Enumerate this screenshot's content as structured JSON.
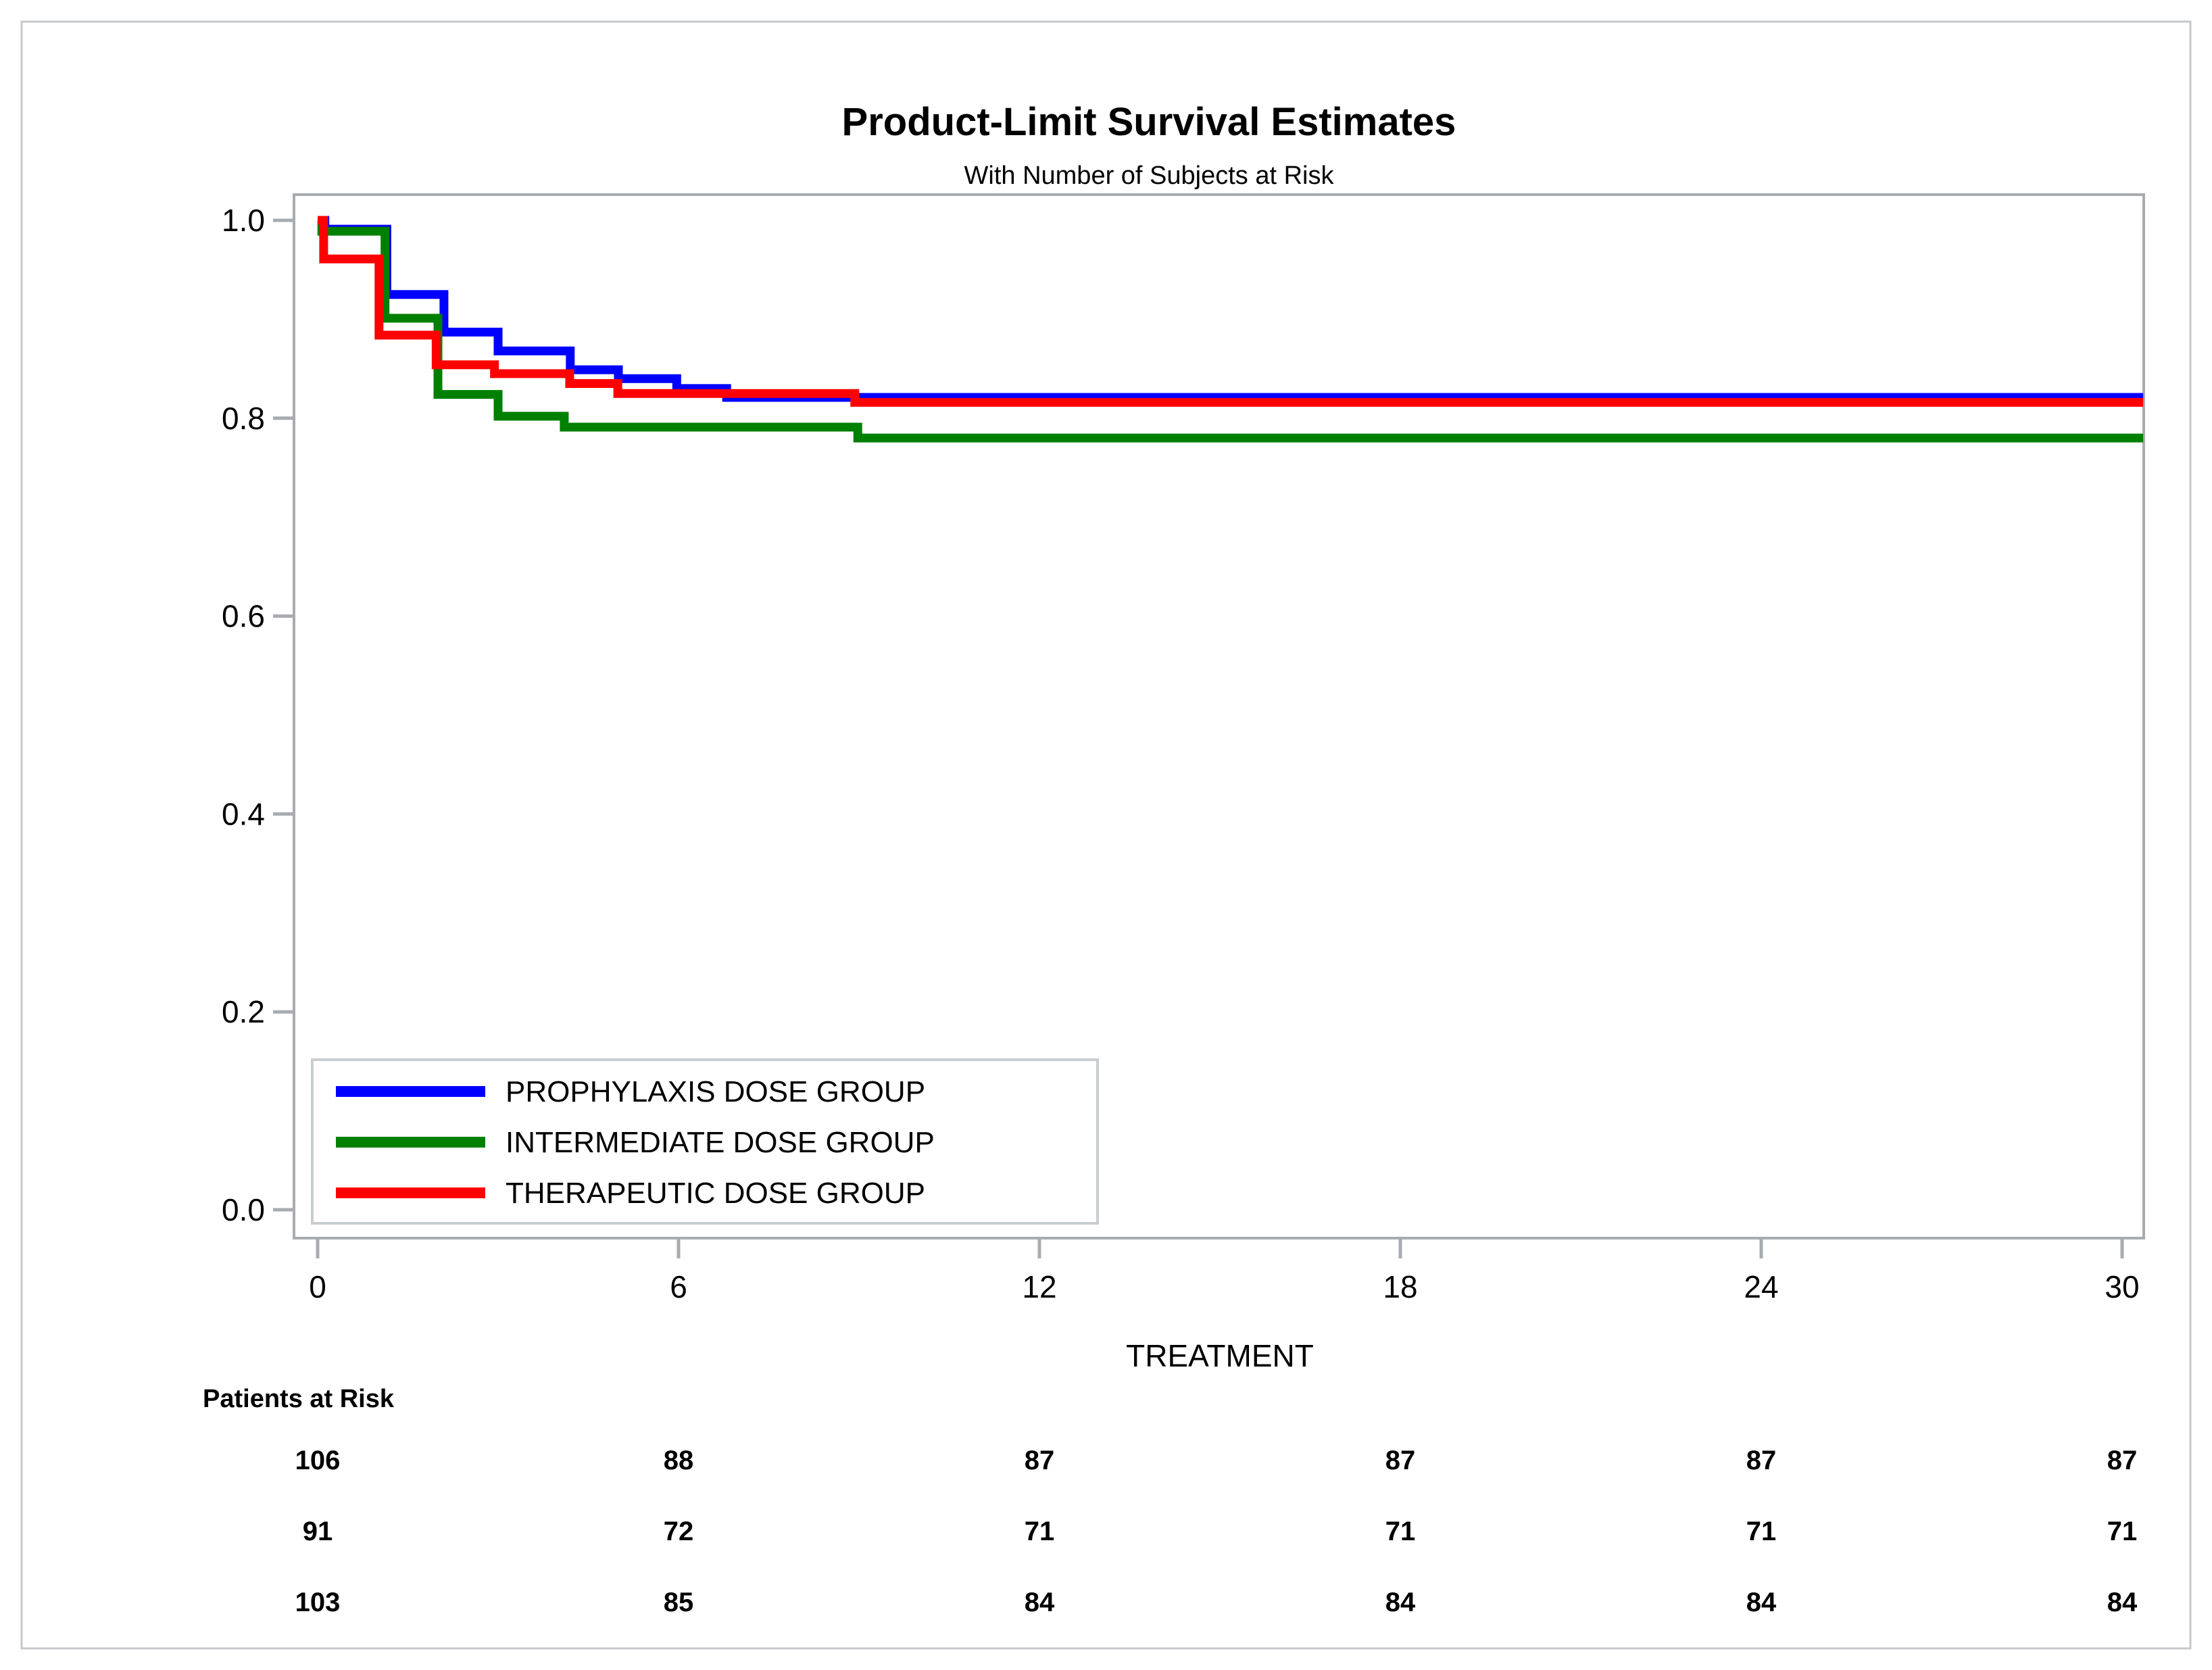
{
  "figure": {
    "title": "Product-Limit Survival Estimates",
    "subtitle": "With Number of Subjects at Risk"
  },
  "chart_data": {
    "type": "line",
    "subtype": "kaplan-meier-step",
    "title": "Product-Limit Survival Estimates",
    "subtitle": "With Number of Subjects at Risk",
    "xlabel": "TREATMENT",
    "ylabel": "",
    "xlim": [
      0,
      30.5
    ],
    "ylim": [
      0.0,
      1.0
    ],
    "xticks": [
      0,
      6,
      12,
      18,
      24,
      30
    ],
    "yticks": [
      1.0,
      0.8,
      0.6,
      0.4,
      0.2,
      0.0
    ],
    "grid": false,
    "legend_position": "bottom-left-inside",
    "series": [
      {
        "name": "PROPHYLAXIS DOSE GROUP",
        "color": "#0000ff",
        "points": [
          [
            0,
            1.0
          ],
          [
            0.12,
            0.991
          ],
          [
            1.15,
            0.925
          ],
          [
            2.1,
            0.887
          ],
          [
            3.0,
            0.868
          ],
          [
            4.2,
            0.849
          ],
          [
            5.0,
            0.84
          ],
          [
            5.97,
            0.83
          ],
          [
            6.8,
            0.821
          ],
          [
            30.35,
            0.821
          ]
        ]
      },
      {
        "name": "INTERMEDIATE DOSE GROUP",
        "color": "#008000",
        "points": [
          [
            0,
            1.0
          ],
          [
            0.07,
            0.989
          ],
          [
            1.12,
            0.901
          ],
          [
            2.0,
            0.824
          ],
          [
            3.0,
            0.802
          ],
          [
            4.1,
            0.791
          ],
          [
            8.98,
            0.78
          ],
          [
            30.35,
            0.78
          ]
        ]
      },
      {
        "name": "THERAPEUTIC DOSE GROUP",
        "color": "#ff0000",
        "points": [
          [
            0,
            1.0
          ],
          [
            0.1,
            0.961
          ],
          [
            1.02,
            0.884
          ],
          [
            1.97,
            0.854
          ],
          [
            2.94,
            0.845
          ],
          [
            4.19,
            0.835
          ],
          [
            4.99,
            0.825
          ],
          [
            8.93,
            0.816
          ],
          [
            30.35,
            0.816
          ]
        ]
      }
    ]
  },
  "legend": {
    "items": [
      {
        "label": "PROPHYLAXIS DOSE GROUP",
        "color": "#0000ff"
      },
      {
        "label": "INTERMEDIATE DOSE GROUP",
        "color": "#008000"
      },
      {
        "label": "THERAPEUTIC DOSE GROUP",
        "color": "#ff0000"
      }
    ]
  },
  "risk_table": {
    "label": "Patients at Risk",
    "times": [
      0,
      6,
      12,
      18,
      24,
      30
    ],
    "rows": [
      {
        "name": "PROPHYLAXIS DOSE GROUP",
        "color": "#0000ff",
        "values": [
          "106",
          "88",
          "87",
          "87",
          "87",
          "87"
        ]
      },
      {
        "name": "INTERMEDIATE DOSE GROUP",
        "color": "#008000",
        "values": [
          "91",
          "72",
          "71",
          "71",
          "71",
          "71"
        ]
      },
      {
        "name": "THERAPEUTIC DOSE GROUP",
        "color": "#ff0000",
        "values": [
          "103",
          "85",
          "84",
          "84",
          "84",
          "84"
        ]
      }
    ]
  },
  "colors": {
    "background": "#ffffff",
    "figure_border": "#c4c8cb",
    "axis_frame": "#a8acb0",
    "tick": "#a8acb0",
    "text": "#000000",
    "legend_border": "#c9cdd0"
  }
}
